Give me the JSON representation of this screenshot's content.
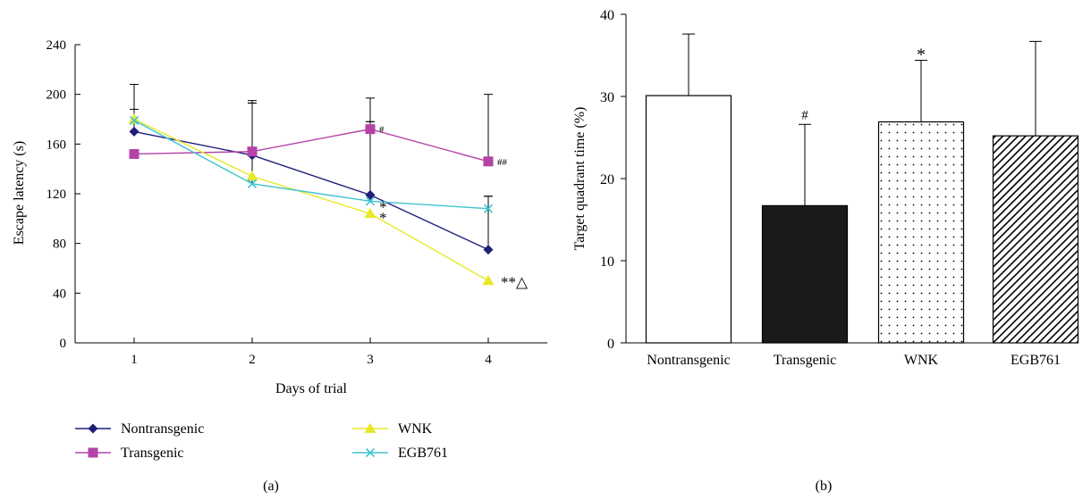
{
  "chart_data": [
    {
      "type": "line",
      "panel_label": "(a)",
      "xlabel": "Days of trial",
      "ylabel": "Escape latency (s)",
      "x": [
        1,
        2,
        3,
        4
      ],
      "x_ticks": [
        "1",
        "2",
        "3",
        "4"
      ],
      "xlim": [
        0.5,
        4.5
      ],
      "y_ticks": [
        0,
        40,
        80,
        120,
        160,
        200,
        240
      ],
      "ylim": [
        0,
        240
      ],
      "grid": false,
      "legend_position": "bottom",
      "series": [
        {
          "name": "Nontransgenic",
          "values": [
            170,
            151,
            119,
            75
          ],
          "errors": [
            18,
            42,
            59,
            43
          ],
          "color": "#1f1f7a",
          "marker": "diamond"
        },
        {
          "name": "Transgenic",
          "values": [
            152,
            154,
            172,
            146
          ],
          "errors": [
            0,
            41,
            25,
            54
          ],
          "color": "#b443a8",
          "marker": "square"
        },
        {
          "name": "WNK",
          "values": [
            180,
            134,
            104,
            50
          ],
          "errors": [
            0,
            0,
            0,
            0
          ],
          "color": "#e8e82a",
          "marker": "triangle"
        },
        {
          "name": "EGB761",
          "values": [
            179,
            128,
            114,
            108
          ],
          "errors": [
            29,
            65,
            64,
            10
          ],
          "color": "#3fc3cf",
          "marker": "x"
        }
      ],
      "annotations": [
        {
          "series": "Transgenic",
          "x": 3,
          "text": "#"
        },
        {
          "series": "Transgenic",
          "x": 4,
          "text": "##"
        },
        {
          "series": "EGB761",
          "x": 3,
          "text": "*"
        },
        {
          "series": "WNK",
          "x": 3,
          "text": "*"
        },
        {
          "series": "WNK",
          "x": 4,
          "text": "**△"
        }
      ]
    },
    {
      "type": "bar",
      "panel_label": "(b)",
      "xlabel": "",
      "ylabel": "Target quadrant time (%)",
      "categories": [
        "Nontransgenic",
        "Transgenic",
        "WNK",
        "EGB761"
      ],
      "values": [
        30.1,
        16.7,
        26.9,
        25.2
      ],
      "errors": [
        7.5,
        9.9,
        7.5,
        11.5
      ],
      "fills": [
        "white",
        "black",
        "dots",
        "diagonal-hatch"
      ],
      "annotations": [
        "",
        "#",
        "*",
        ""
      ],
      "y_ticks": [
        0,
        10,
        20,
        30,
        40
      ],
      "ylim": [
        0,
        40
      ],
      "grid": false
    }
  ]
}
